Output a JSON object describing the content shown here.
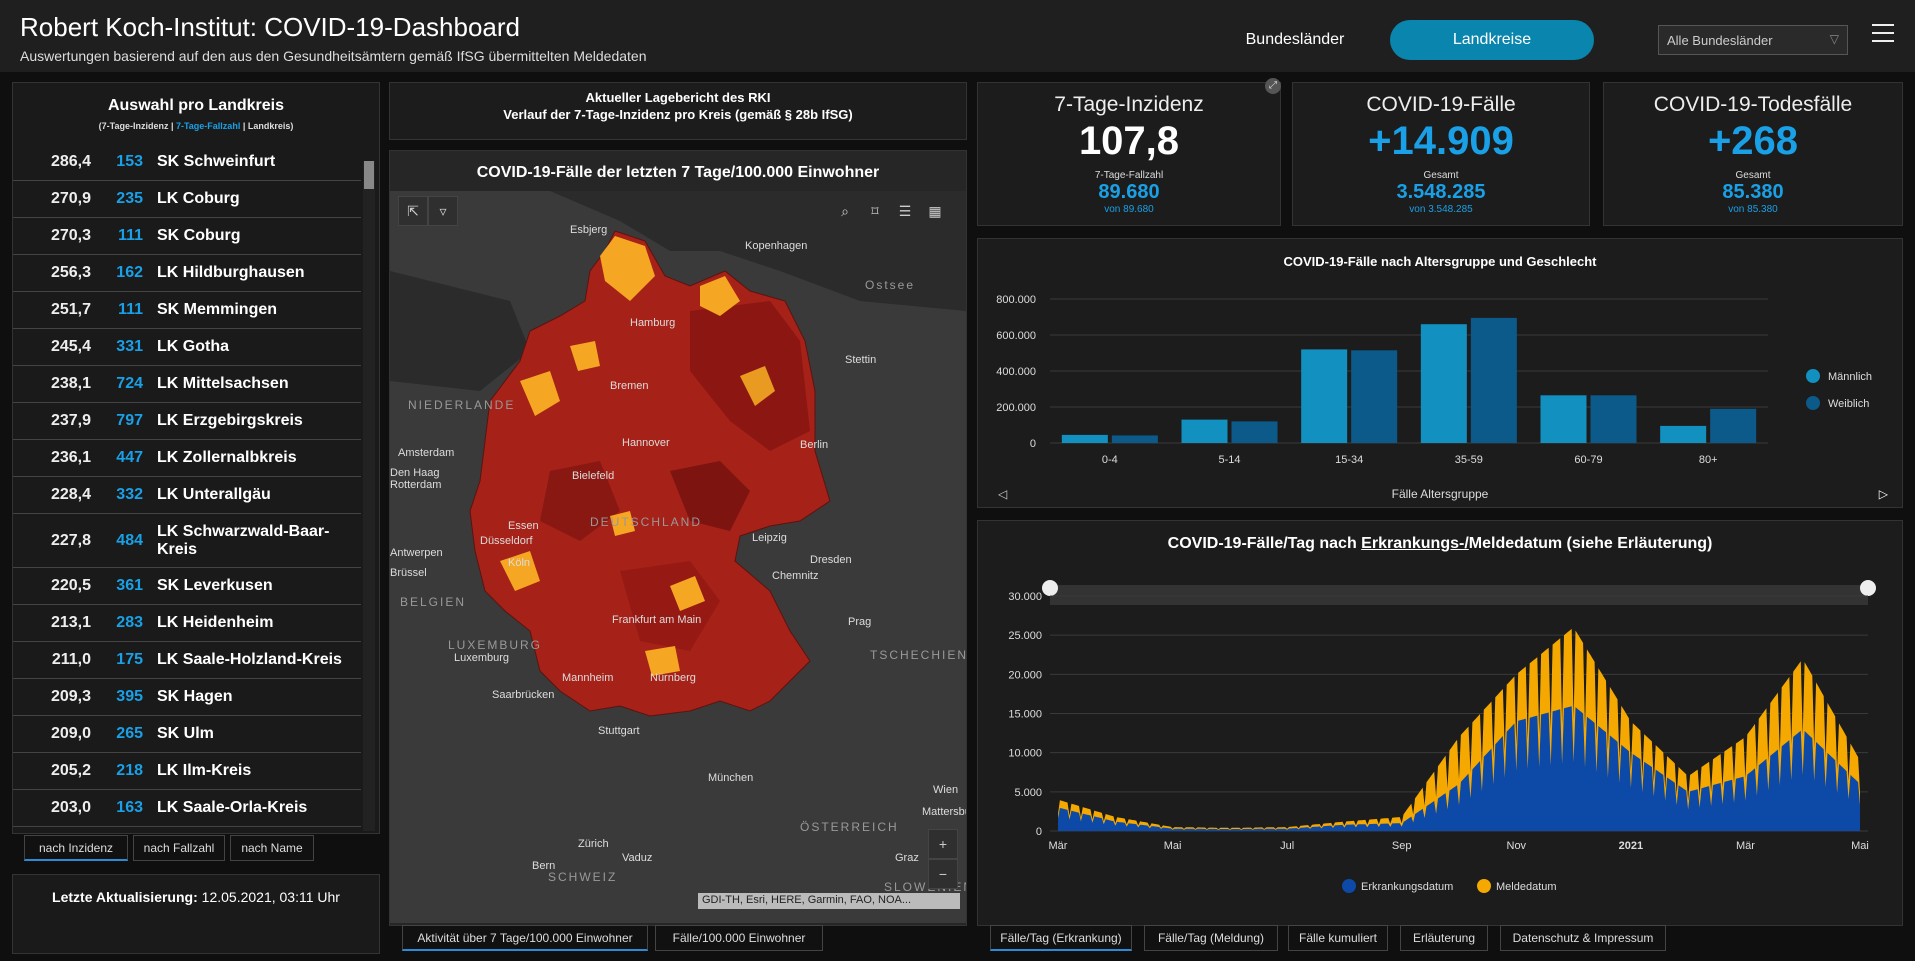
{
  "header": {
    "title": "Robert Koch-Institut: COVID-19-Dashboard",
    "subtitle": "Auswertungen basierend auf den aus den Gesundheitsämtern gemäß IfSG übermittelten Meldedaten",
    "seg_bundeslaender": "Bundesländer",
    "seg_landkreise": "Landkreise",
    "select_value": "Alle Bundesländer"
  },
  "left": {
    "title": "Auswahl pro Landkreis",
    "sub_a": "(7-Tage-Inzidenz | ",
    "sub_b": "7-Tage-Fallzahl",
    "sub_c": " | Landkreis)",
    "rows": [
      {
        "inz": "286,4",
        "fall": "153",
        "name": "SK Schweinfurt"
      },
      {
        "inz": "270,9",
        "fall": "235",
        "name": "LK Coburg"
      },
      {
        "inz": "270,3",
        "fall": "111",
        "name": "SK Coburg"
      },
      {
        "inz": "256,3",
        "fall": "162",
        "name": "LK Hildburghausen"
      },
      {
        "inz": "251,7",
        "fall": "111",
        "name": "SK Memmingen"
      },
      {
        "inz": "245,4",
        "fall": "331",
        "name": "LK Gotha"
      },
      {
        "inz": "238,1",
        "fall": "724",
        "name": "LK Mittelsachsen"
      },
      {
        "inz": "237,9",
        "fall": "797",
        "name": "LK Erzgebirgskreis"
      },
      {
        "inz": "236,1",
        "fall": "447",
        "name": "LK Zollernalbkreis"
      },
      {
        "inz": "228,4",
        "fall": "332",
        "name": "LK Unterallgäu"
      },
      {
        "inz": "227,8",
        "fall": "484",
        "name": "LK Schwarzwald-Baar-Kreis"
      },
      {
        "inz": "220,5",
        "fall": "361",
        "name": "SK Leverkusen"
      },
      {
        "inz": "213,1",
        "fall": "283",
        "name": "LK Heidenheim"
      },
      {
        "inz": "211,0",
        "fall": "175",
        "name": "LK Saale-Holzland-Kreis"
      },
      {
        "inz": "209,3",
        "fall": "395",
        "name": "SK Hagen"
      },
      {
        "inz": "209,0",
        "fall": "265",
        "name": "SK Ulm"
      },
      {
        "inz": "205,2",
        "fall": "218",
        "name": "LK Ilm-Kreis"
      },
      {
        "inz": "203,0",
        "fall": "163",
        "name": "LK Saale-Orla-Kreis"
      }
    ],
    "tabs": [
      "nach Inzidenz",
      "nach Fallzahl",
      "nach Name"
    ],
    "update_label": "Letzte Aktualisierung:",
    "update_value": "12.05.2021, 03:11 Uhr"
  },
  "map": {
    "report_line1": "Aktueller Lagebericht des RKI",
    "report_line2": "Verlauf der 7-Tage-Inzidenz pro Kreis (gemäß § 28b IfSG)",
    "title": "COVID-19-Fälle der letzten 7 Tage/100.000 Einwohner",
    "attribution": "GDI-TH, Esri, HERE, Garmin, FAO, NOA...",
    "labels": [
      "Esbjerg",
      "Kopenhagen",
      "Ostsee",
      "Hamburg",
      "Stettin",
      "Bremen",
      "NIEDERLANDE",
      "Amsterdam",
      "Hannover",
      "Berlin",
      "Den Haag",
      "Rotterdam",
      "Bielefeld",
      "DEUTSCHLAND",
      "Essen",
      "Düsseldorf",
      "Leipzig",
      "Antwerpen",
      "Köln",
      "Dresden",
      "Chemnitz",
      "Brüssel",
      "BELGIEN",
      "Frankfurt am Main",
      "Prag",
      "LUXEMBURG",
      "Luxemburg",
      "TSCHECHIEN",
      "Mannheim",
      "Nürnberg",
      "Saarbrücken",
      "Stuttgart",
      "München",
      "Wien",
      "Mattersbu",
      "ÖSTERREICH",
      "Zürich",
      "Vaduz",
      "Graz",
      "Bern",
      "SCHWEIZ",
      "SLOWENIEN"
    ],
    "tabs": [
      "Aktivität über 7 Tage/100.000 Einwohner",
      "Fälle/100.000 Einwohner"
    ]
  },
  "kpis": [
    {
      "title": "7-Tage-Inzidenz",
      "big": "107,8",
      "small": "7-Tage-Fallzahl",
      "mid": "89.680",
      "von": "von 89.680"
    },
    {
      "title": "COVID-19-Fälle",
      "big": "+14.909",
      "small": "Gesamt",
      "mid": "3.548.285",
      "von": "von 3.548.285"
    },
    {
      "title": "COVID-19-Todesfälle",
      "big": "+268",
      "small": "Gesamt",
      "mid": "85.380",
      "von": "von 85.380"
    }
  ],
  "age_chart": {
    "title": "COVID-19-Fälle nach Altersgruppe und Geschlecht",
    "xlabel": "Fälle Altersgruppe",
    "yticks": [
      "800.000",
      "600.000",
      "400.000",
      "200.000",
      "0"
    ],
    "legend": [
      "Männlich",
      "Weiblich"
    ]
  },
  "daily_chart": {
    "title_a": "COVID-19-Fälle/Tag nach ",
    "title_b": "Erkrankungs-/",
    "title_c": "Meldedatum (siehe Erläuterung)",
    "yticks": [
      "30.000",
      "25.000",
      "20.000",
      "15.000",
      "10.000",
      "5.000",
      "0"
    ],
    "xticks": [
      "Mär",
      "Mai",
      "Jul",
      "Sep",
      "Nov",
      "2021",
      "Mär",
      "Mai"
    ],
    "legend": [
      "Erkrankungsdatum",
      "Meldedatum"
    ],
    "tabs": [
      "Fälle/Tag (Erkrankung)",
      "Fälle/Tag (Meldung)",
      "Fälle kumuliert",
      "Erläuterung",
      "Datenschutz & Impressum"
    ]
  },
  "colors": {
    "accent": "#19a0e6",
    "seg_active": "#0a86ae",
    "male": "#1290c0",
    "female": "#0c5a8a",
    "erkrankung": "#0d4aa8",
    "melde": "#f5a800"
  },
  "chart_data": [
    {
      "type": "bar",
      "title": "COVID-19-Fälle nach Altersgruppe und Geschlecht",
      "xlabel": "Fälle Altersgruppe",
      "ylabel": "",
      "categories": [
        "0-4",
        "5-14",
        "15-34",
        "35-59",
        "60-79",
        "80+"
      ],
      "series": [
        {
          "name": "Männlich",
          "values": [
            45000,
            130000,
            520000,
            660000,
            265000,
            95000
          ]
        },
        {
          "name": "Weiblich",
          "values": [
            42000,
            120000,
            515000,
            695000,
            265000,
            190000
          ]
        }
      ],
      "ylim": [
        0,
        800000
      ],
      "legend": "right"
    },
    {
      "type": "area",
      "title": "COVID-19-Fälle/Tag nach Erkrankungs-/Meldedatum (siehe Erläuterung)",
      "x": [
        "2020-03",
        "2020-04",
        "2020-05",
        "2020-06",
        "2020-07",
        "2020-08",
        "2020-09",
        "2020-10",
        "2020-11",
        "2020-12",
        "2021-01",
        "2021-02",
        "2021-03",
        "2021-04",
        "2021-05"
      ],
      "series": [
        {
          "name": "Erkrankungsdatum",
          "values": [
            3000,
            1200,
            300,
            250,
            300,
            800,
            1000,
            6000,
            14000,
            16000,
            10000,
            5000,
            7000,
            13000,
            6000
          ]
        },
        {
          "name": "Meldedatum",
          "values": [
            4000,
            1800,
            500,
            400,
            500,
            1200,
            1800,
            12000,
            20000,
            26000,
            14000,
            7000,
            12000,
            22000,
            9000
          ]
        }
      ],
      "ylim": [
        0,
        30000
      ],
      "legend": "bottom"
    }
  ]
}
